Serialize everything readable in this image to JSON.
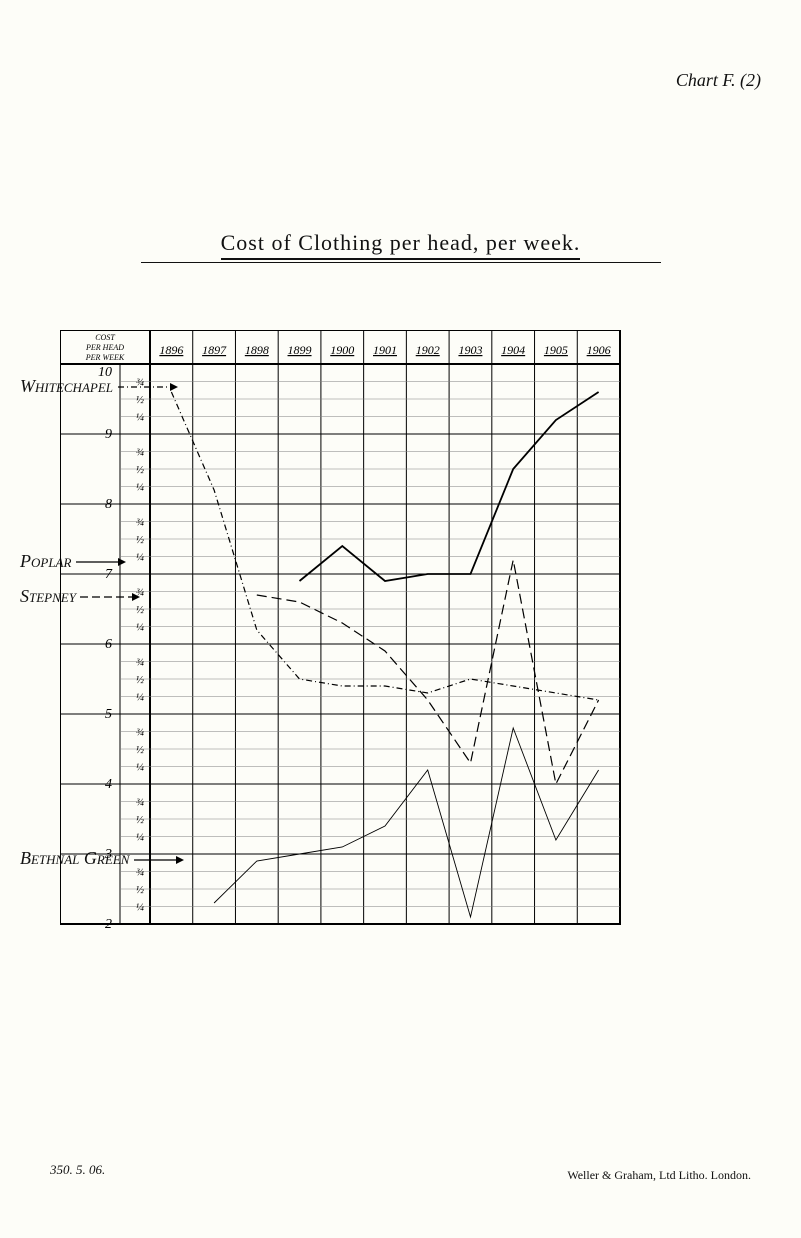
{
  "corner_label": "Chart F. (2)",
  "title": "Cost of Clothing per head, per week.",
  "chart": {
    "type": "line",
    "dims": {
      "inner_width": 470,
      "inner_height": 560
    },
    "background_color": "#fdfdf8",
    "border_color": "#000000",
    "grid_color": "#000000",
    "grid_minor_color": "#808080",
    "font_family": "Times New Roman",
    "axis_header_label": "COST\nPER HEAD\nPER WEEK",
    "years": [
      "1896",
      "1897",
      "1898",
      "1899",
      "1900",
      "1901",
      "1902",
      "1903",
      "1904",
      "1905",
      "1906"
    ],
    "y_major": [
      10,
      9,
      8,
      7,
      6,
      5,
      4,
      3,
      2
    ],
    "y_minor": [
      "¾",
      "½",
      "¼"
    ],
    "y_unit": "d.",
    "series": [
      {
        "name": "Whitechapel",
        "label": "Whitechapel",
        "arrow_style": "dash-dot",
        "color": "#000000",
        "line_width": 1.2,
        "dash": "6 3 1 3",
        "values": [
          9.6,
          8.2,
          6.2,
          5.5,
          5.4,
          5.4,
          5.3,
          5.5,
          5.4,
          5.3,
          5.2
        ]
      },
      {
        "name": "Poplar",
        "label": "Poplar",
        "arrow_style": "solid",
        "color": "#000000",
        "line_width": 1.8,
        "dash": "",
        "values": [
          null,
          null,
          null,
          6.9,
          7.4,
          6.9,
          7.0,
          7.0,
          8.5,
          9.2,
          9.6
        ]
      },
      {
        "name": "Stepney",
        "label": "Stepney",
        "arrow_style": "long-dash",
        "color": "#000000",
        "line_width": 1.2,
        "dash": "10 5",
        "values": [
          null,
          null,
          6.7,
          6.6,
          6.3,
          5.9,
          5.2,
          4.3,
          7.2,
          4.0,
          5.2
        ]
      },
      {
        "name": "BethnalGreen",
        "label": "Bethnal Green",
        "arrow_style": "solid-thin",
        "color": "#000000",
        "line_width": 0.9,
        "dash": "",
        "values": [
          null,
          2.3,
          2.9,
          3.0,
          3.1,
          3.4,
          4.2,
          2.1,
          4.8,
          3.2,
          4.2
        ]
      }
    ]
  },
  "side_labels": {
    "Whitechapel": {
      "text": "Whitechapel",
      "y_value": 9.75
    },
    "Poplar": {
      "text": "Poplar",
      "y_value": 7.25
    },
    "Stepney": {
      "text": "Stepney",
      "y_value": 6.75
    },
    "BethnalGreen": {
      "text": "Bethnal Green",
      "y_value": 3.0
    }
  },
  "footer_left": "350. 5. 06.",
  "footer_right": "Weller & Graham, Ltd  Litho. London."
}
